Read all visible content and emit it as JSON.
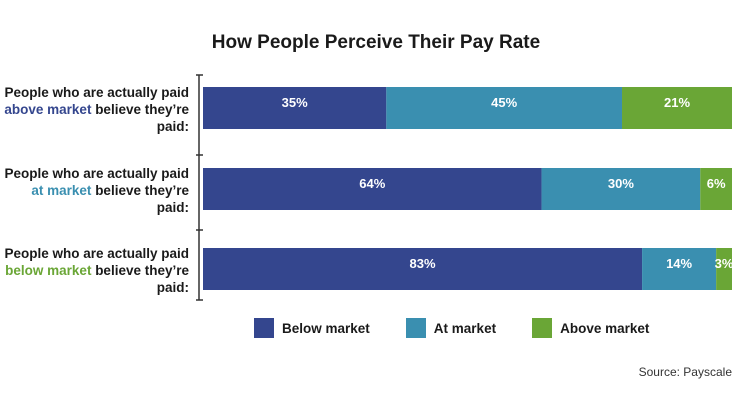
{
  "chart_data": {
    "type": "bar",
    "orientation": "horizontal",
    "stacked": true,
    "title": "How People Perceive Their Pay Rate",
    "categories": [
      {
        "pre": "People who are actually paid ",
        "highlight": "above market",
        "post": " believe they’re paid:",
        "highlight_color": "#34468e"
      },
      {
        "pre": "People who are actually paid ",
        "highlight": "at market",
        "post": " believe they’re paid:",
        "highlight_color": "#3a8fb0"
      },
      {
        "pre": "People who are actually paid ",
        "highlight": "below market",
        "post": " believe they’re paid:",
        "highlight_color": "#6aa636"
      }
    ],
    "series": [
      {
        "name": "Below market",
        "color": "#34468e",
        "values": [
          35,
          64,
          83
        ]
      },
      {
        "name": "At market",
        "color": "#3a8fb0",
        "values": [
          45,
          30,
          14
        ]
      },
      {
        "name": "Above market",
        "color": "#6aa636",
        "values": [
          21,
          6,
          3
        ]
      }
    ],
    "value_suffix": "%",
    "legend_position": "bottom",
    "source": "Source: Payscale"
  }
}
